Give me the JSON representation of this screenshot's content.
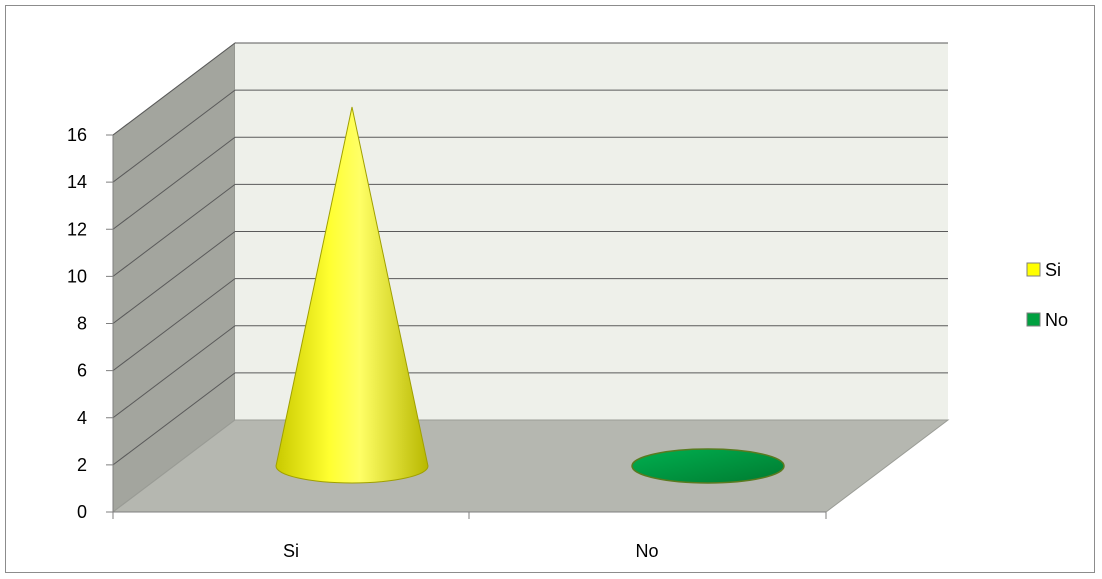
{
  "chart_data": {
    "type": "bar",
    "style": "3d-cone",
    "categories": [
      "Si",
      "No"
    ],
    "series": [
      {
        "name": "Si",
        "color": "#ffff00",
        "values": [
          16,
          0
        ]
      },
      {
        "name": "No",
        "color": "#00a040",
        "values": [
          0,
          0
        ]
      }
    ],
    "ylim": [
      0,
      16
    ],
    "yticks": [
      "0",
      "2",
      "4",
      "6",
      "8",
      "10",
      "12",
      "14",
      "16"
    ],
    "grid": true,
    "legend_position": "right",
    "colors": {
      "back_wall": "#eef0ea",
      "side_wall": "#a3a59e",
      "floor": "#b5b7b0",
      "grid": "#5a5a5a"
    }
  }
}
